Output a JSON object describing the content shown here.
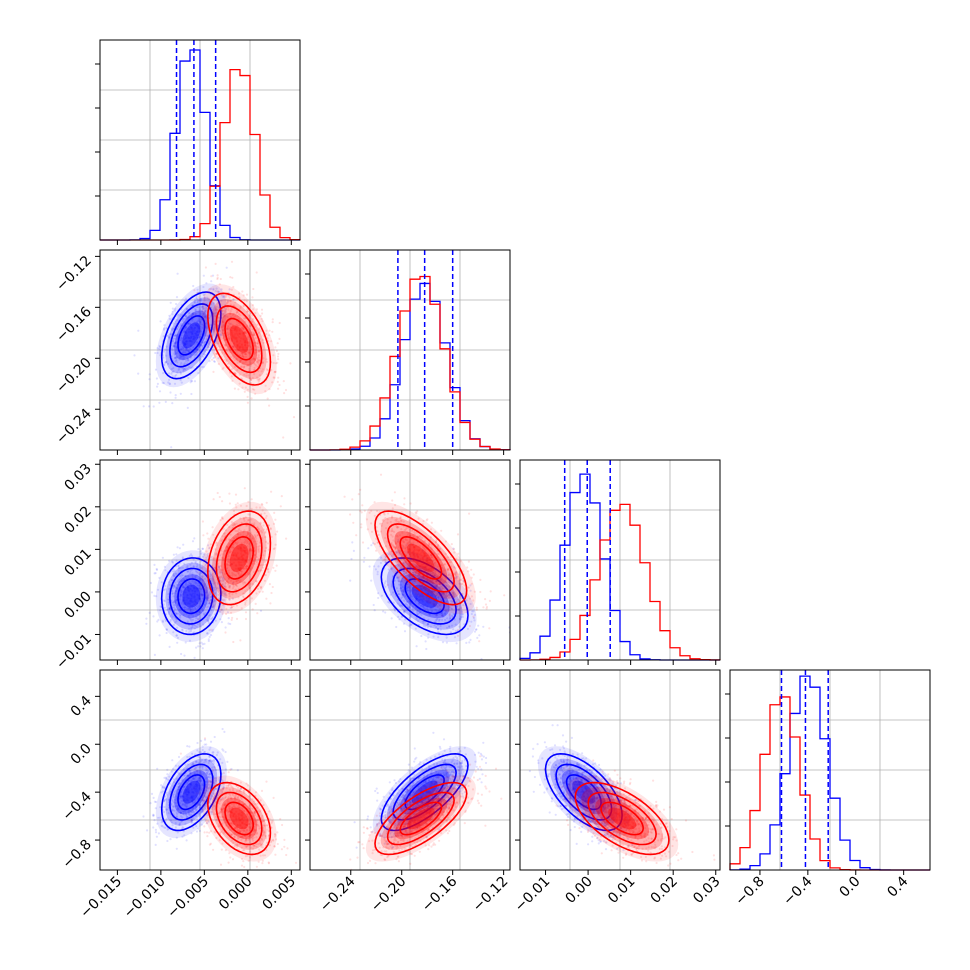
{
  "chart_data": {
    "type": "corner",
    "parameters": 4,
    "series": [
      {
        "color": "#0000ff",
        "mean": [
          -0.0065,
          -0.182,
          -0.001,
          -0.4
        ],
        "sd": [
          0.0017,
          0.017,
          0.0045,
          0.16
        ],
        "corr": [
          [
            1,
            0.5,
            0.05,
            0.45
          ],
          [
            0.5,
            1,
            -0.5,
            0.7
          ],
          [
            0.05,
            -0.5,
            1,
            -0.6
          ],
          [
            0.45,
            0.7,
            -0.6,
            1
          ]
        ],
        "hist_peak_density": [
          1.0,
          0.85,
          0.95,
          1.0
        ]
      },
      {
        "color": "#ff0000",
        "mean": [
          -0.001,
          -0.185,
          0.008,
          -0.62
        ],
        "sd": [
          0.0018,
          0.018,
          0.0055,
          0.15
        ],
        "corr": [
          [
            1,
            -0.5,
            0.3,
            -0.4
          ],
          [
            -0.5,
            1,
            -0.7,
            0.7
          ],
          [
            0.3,
            -0.7,
            1,
            -0.6
          ],
          [
            -0.4,
            0.7,
            -0.6,
            1
          ]
        ],
        "hist_peak_density": [
          0.9,
          0.9,
          0.8,
          0.9
        ]
      }
    ],
    "quantile_lines": {
      "color": "#0000ff",
      "values": [
        [
          -0.0082,
          -0.0062,
          -0.0037
        ],
        [
          -0.203,
          -0.182,
          -0.16
        ],
        [
          -0.0055,
          -0.0002,
          0.0052
        ],
        [
          -0.62,
          -0.42,
          -0.23
        ]
      ]
    },
    "ranges": [
      [
        -0.017,
        0.006
      ],
      [
        -0.272,
        -0.115
      ],
      [
        -0.016,
        0.031
      ],
      [
        -1.05,
        0.62
      ]
    ],
    "ticks": [
      [
        -0.015,
        -0.01,
        -0.005,
        0.0,
        0.005
      ],
      [
        -0.24,
        -0.2,
        -0.16,
        -0.12
      ],
      [
        -0.01,
        0.0,
        0.01,
        0.02,
        0.03
      ],
      [
        -0.8,
        -0.4,
        0.0,
        0.4
      ]
    ],
    "tick_labels": [
      [
        "−0.015",
        "−0.010",
        "−0.005",
        "0.000",
        "0.005"
      ],
      [
        "−0.24",
        "−0.20",
        "−0.16",
        "−0.12"
      ],
      [
        "−0.01",
        "0.00",
        "0.01",
        "0.02",
        "0.03"
      ],
      [
        "−0.8",
        "−0.4",
        "0.0",
        "0.4"
      ]
    ],
    "grid": true
  }
}
